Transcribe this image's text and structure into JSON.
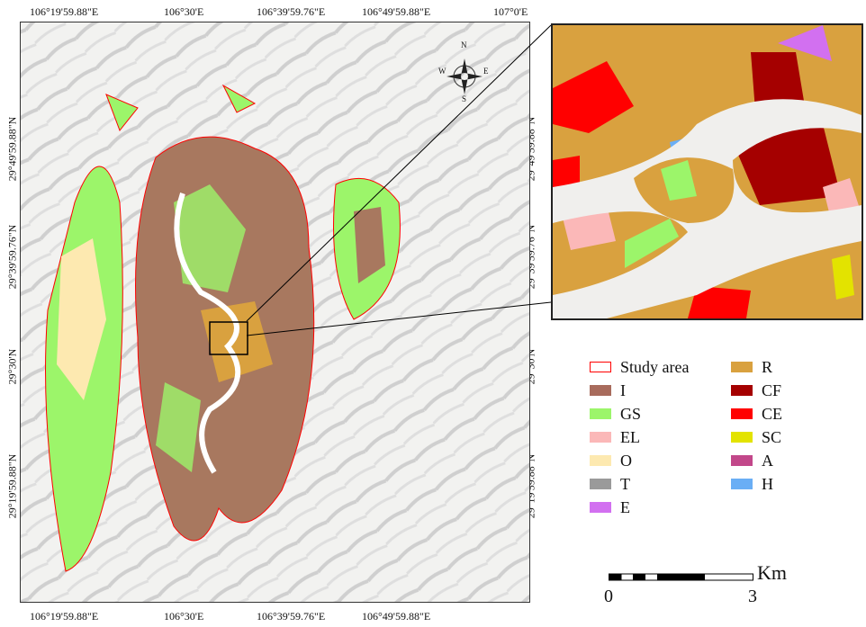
{
  "axes": {
    "top": [
      "106°19'59.88\"E",
      "106°30'E",
      "106°39'59.76\"E",
      "106°49'59.88\"E",
      "107°0'E"
    ],
    "bottom": [
      "106°19'59.88\"E",
      "106°30'E",
      "106°39'59.76\"E",
      "106°49'59.88\"E"
    ],
    "left": [
      "29°49'59.88\"N",
      "29°39'59.76\"N",
      "29°30'N",
      "29°19'59.88\"N"
    ],
    "right": [
      "29°49'59.88\"N",
      "29°39'59.76\"N",
      "29°30'N",
      "29°19'59.88\"N"
    ]
  },
  "compass": {
    "n": "N",
    "s": "S",
    "e": "E",
    "w": "W"
  },
  "legend": [
    {
      "label": "Study area",
      "color": "#ff0000",
      "outline": true
    },
    {
      "label": "I",
      "color": "#a86b5c"
    },
    {
      "label": "GS",
      "color": "#9cf56a"
    },
    {
      "label": "EL",
      "color": "#fbb8b8"
    },
    {
      "label": "O",
      "color": "#fde9b0"
    },
    {
      "label": "T",
      "color": "#9a9a9a"
    },
    {
      "label": "E",
      "color": "#d270f0"
    },
    {
      "label": "R",
      "color": "#d9a13f"
    },
    {
      "label": "CF",
      "color": "#a50000"
    },
    {
      "label": "CE",
      "color": "#ff0000"
    },
    {
      "label": "SC",
      "color": "#e3e300"
    },
    {
      "label": "A",
      "color": "#c2478a"
    },
    {
      "label": "H",
      "color": "#6aaef5"
    }
  ],
  "scalebar": {
    "unit": "Km",
    "start": "0",
    "end": "3"
  }
}
